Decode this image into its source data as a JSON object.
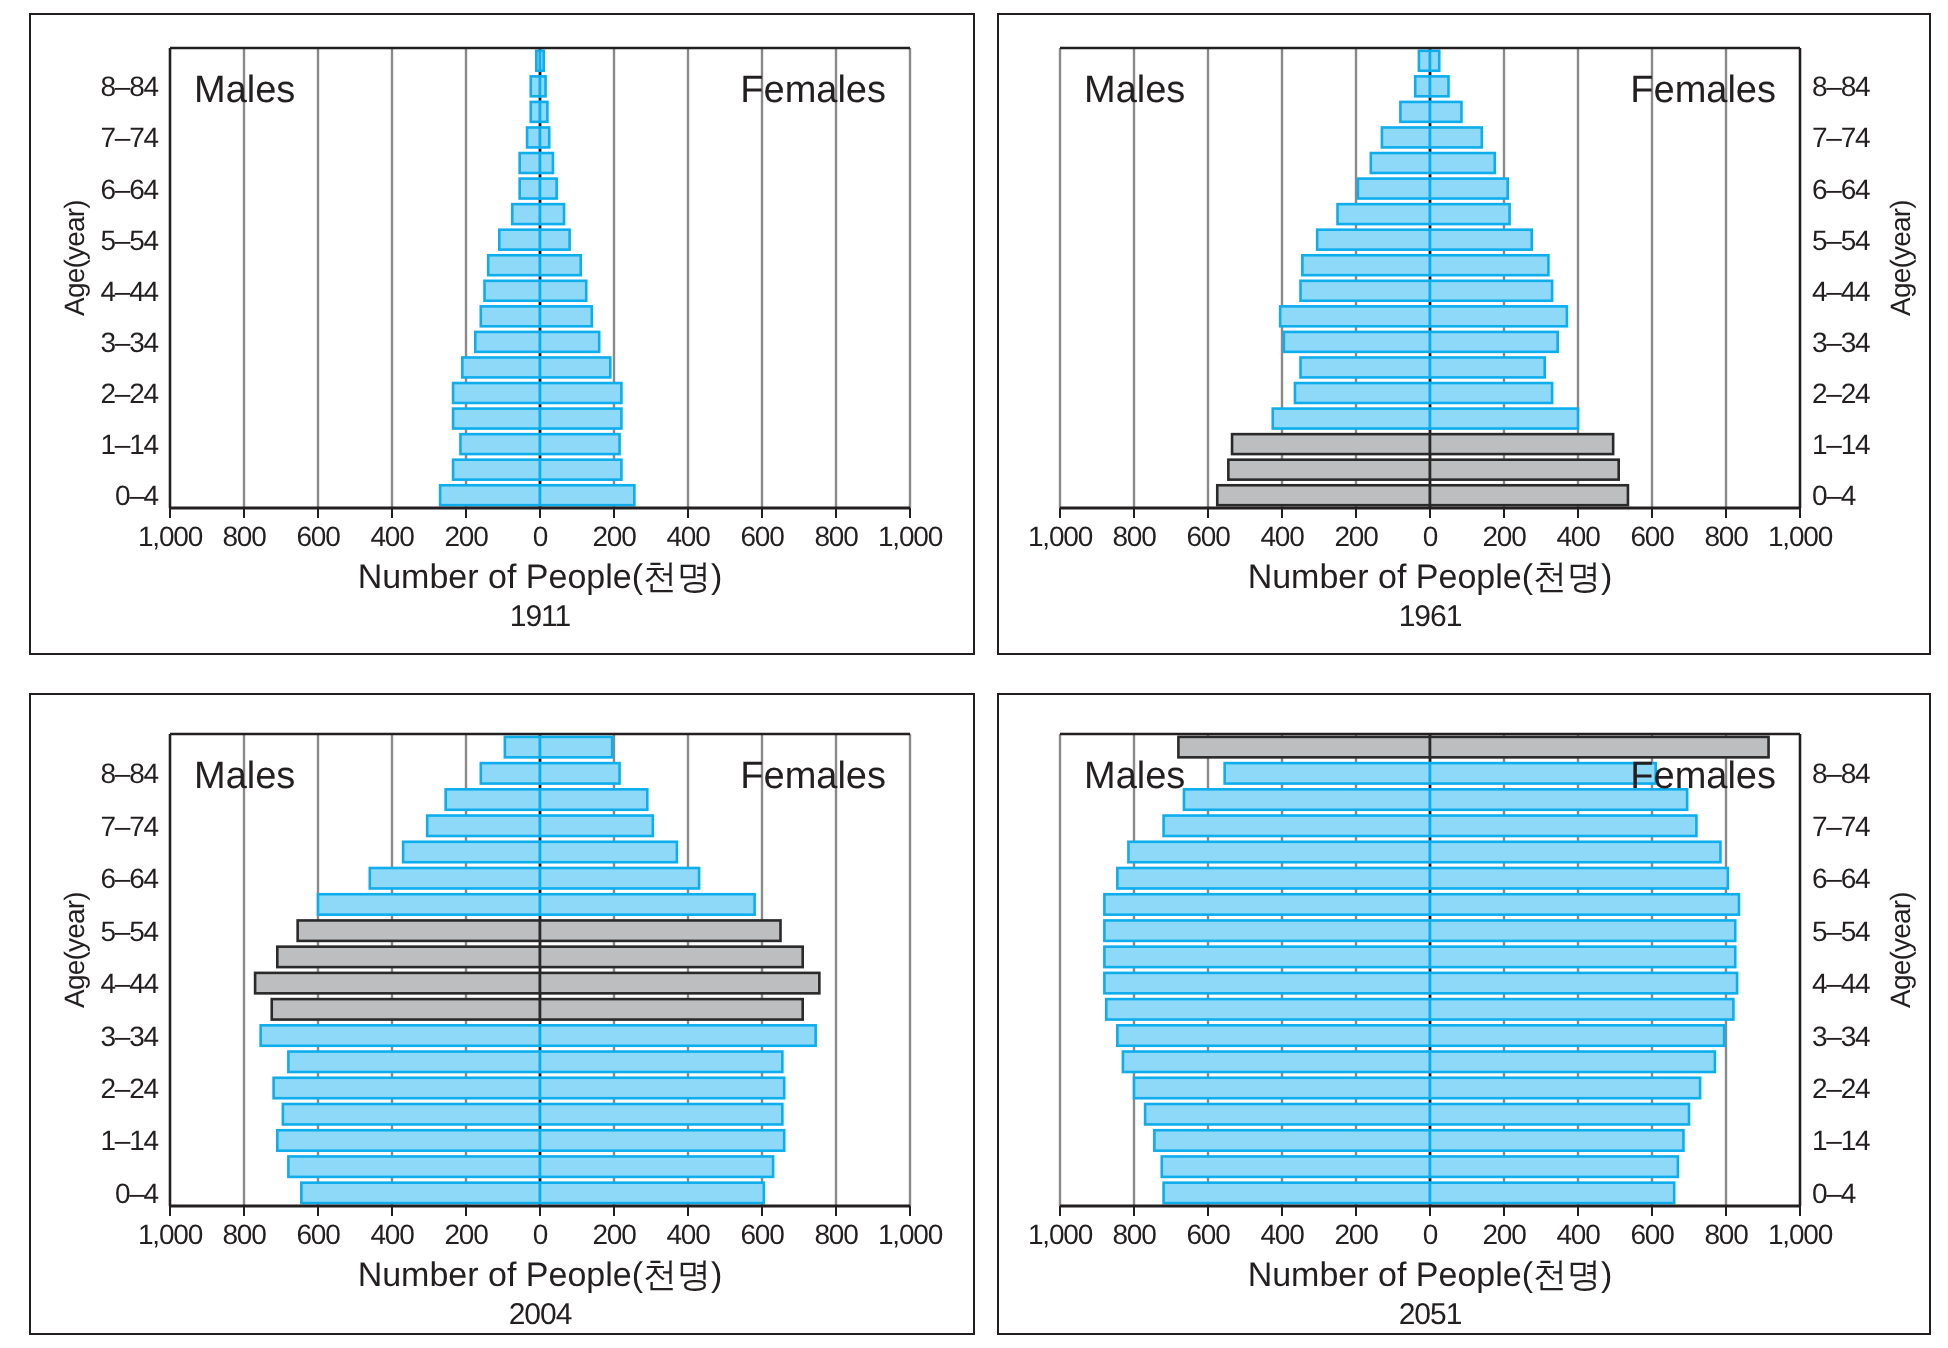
{
  "chart_data": [
    {
      "type": "bar",
      "orientation": "horizontal",
      "stacked": true,
      "annotations": [
        "Males",
        "Females"
      ],
      "title": "1911",
      "xlabel": "Number of People(천명)",
      "ylabel": "Age(year)",
      "categories": [
        null,
        "8–84",
        null,
        "7–74",
        null,
        "6–64",
        null,
        "5–54",
        null,
        "4–44",
        null,
        "3–34",
        null,
        "2–24",
        null,
        "1–14",
        null,
        "0–4"
      ],
      "series": [
        {
          "color": "#8ed8f8",
          "values": [
            -10,
            -25,
            -25,
            -35,
            -55,
            -55,
            -75,
            -110,
            -140,
            -150,
            -160,
            -175,
            -210,
            -235,
            -235,
            -215,
            -235,
            -270
          ]
        },
        {
          "color": "#8ed8f8",
          "values": [
            10,
            15,
            20,
            25,
            35,
            45,
            65,
            80,
            110,
            125,
            140,
            160,
            190,
            220,
            220,
            215,
            220,
            255
          ]
        }
      ],
      "xlim": [
        -1000,
        1000
      ],
      "xticks": [
        {
          "value": -1000,
          "label": "1,000"
        },
        {
          "value": -800,
          "label": "800"
        },
        {
          "value": -600,
          "label": "600"
        },
        {
          "value": -400,
          "label": "400"
        },
        {
          "value": -200,
          "label": "200"
        },
        0,
        200,
        400,
        600,
        800,
        {
          "value": 1000,
          "label": "1,000"
        }
      ],
      "grid": "x"
    },
    {
      "type": "bar",
      "orientation": "horizontal",
      "stacked": true,
      "annotations": [
        "Males",
        "Females"
      ],
      "title": "1961",
      "xlabel": "Number of People(천명)",
      "ylabel": "Age(year)",
      "categories": [
        null,
        "8–84",
        null,
        "7–74",
        null,
        "6–64",
        null,
        "5–54",
        null,
        "4–44",
        null,
        "3–34",
        null,
        "2–24",
        null,
        "1–14",
        null,
        "0–4"
      ],
      "series": [
        {
          "colors": [
            "#8ed8f8",
            "#8ed8f8",
            "#8ed8f8",
            "#8ed8f8",
            "#8ed8f8",
            "#8ed8f8",
            "#8ed8f8",
            "#8ed8f8",
            "#8ed8f8",
            "#8ed8f8",
            "#8ed8f8",
            "#8ed8f8",
            "#8ed8f8",
            "#8ed8f8",
            "#8ed8f8",
            "#bcbec0",
            "#bcbec0",
            "#bcbec0"
          ],
          "values": [
            -30,
            -40,
            -80,
            -130,
            -160,
            -195,
            -250,
            -305,
            -345,
            -350,
            -405,
            -395,
            -350,
            -365,
            -425,
            -535,
            -545,
            -575
          ]
        },
        {
          "colors": [
            "#8ed8f8",
            "#8ed8f8",
            "#8ed8f8",
            "#8ed8f8",
            "#8ed8f8",
            "#8ed8f8",
            "#8ed8f8",
            "#8ed8f8",
            "#8ed8f8",
            "#8ed8f8",
            "#8ed8f8",
            "#8ed8f8",
            "#8ed8f8",
            "#8ed8f8",
            "#8ed8f8",
            "#bcbec0",
            "#bcbec0",
            "#bcbec0"
          ],
          "values": [
            25,
            50,
            85,
            140,
            175,
            210,
            215,
            275,
            320,
            330,
            370,
            345,
            310,
            330,
            400,
            495,
            510,
            535
          ]
        }
      ],
      "xlim": [
        -1000,
        1000
      ],
      "xticks": [
        {
          "value": -1000,
          "label": "1,000"
        },
        {
          "value": -800,
          "label": "800"
        },
        {
          "value": -600,
          "label": "600"
        },
        {
          "value": -400,
          "label": "400"
        },
        {
          "value": -200,
          "label": "200"
        },
        0,
        200,
        400,
        600,
        800,
        {
          "value": 1000,
          "label": "1,000"
        }
      ],
      "grid": "x"
    },
    {
      "type": "bar",
      "orientation": "horizontal",
      "stacked": true,
      "annotations": [
        "Males",
        "Females"
      ],
      "title": "2004",
      "xlabel": "Number of People(천명)",
      "ylabel": "Age(year)",
      "categories": [
        null,
        "8–84",
        null,
        "7–74",
        null,
        "6–64",
        null,
        "5–54",
        null,
        "4–44",
        null,
        "3–34",
        null,
        "2–24",
        null,
        "1–14",
        null,
        "0–4"
      ],
      "series": [
        {
          "colors": [
            "#8ed8f8",
            "#8ed8f8",
            "#8ed8f8",
            "#8ed8f8",
            "#8ed8f8",
            "#8ed8f8",
            "#8ed8f8",
            "#bcbec0",
            "#bcbec0",
            "#bcbec0",
            "#bcbec0",
            "#8ed8f8",
            "#8ed8f8",
            "#8ed8f8",
            "#8ed8f8",
            "#8ed8f8",
            "#8ed8f8",
            "#8ed8f8"
          ],
          "values": [
            -95,
            -160,
            -255,
            -305,
            -370,
            -460,
            -600,
            -655,
            -710,
            -770,
            -725,
            -755,
            -680,
            -720,
            -695,
            -710,
            -680,
            -645
          ]
        },
        {
          "colors": [
            "#8ed8f8",
            "#8ed8f8",
            "#8ed8f8",
            "#8ed8f8",
            "#8ed8f8",
            "#8ed8f8",
            "#8ed8f8",
            "#bcbec0",
            "#bcbec0",
            "#bcbec0",
            "#bcbec0",
            "#8ed8f8",
            "#8ed8f8",
            "#8ed8f8",
            "#8ed8f8",
            "#8ed8f8",
            "#8ed8f8",
            "#8ed8f8"
          ],
          "values": [
            195,
            215,
            290,
            305,
            370,
            430,
            580,
            650,
            710,
            755,
            710,
            745,
            655,
            660,
            655,
            660,
            630,
            605
          ]
        }
      ],
      "xlim": [
        -1000,
        1000
      ],
      "xticks": [
        {
          "value": -1000,
          "label": "1,000"
        },
        {
          "value": -800,
          "label": "800"
        },
        {
          "value": -600,
          "label": "600"
        },
        {
          "value": -400,
          "label": "400"
        },
        {
          "value": -200,
          "label": "200"
        },
        0,
        200,
        400,
        600,
        800,
        {
          "value": 1000,
          "label": "1,000"
        }
      ],
      "grid": "x"
    },
    {
      "type": "bar",
      "orientation": "horizontal",
      "stacked": true,
      "annotations": [
        "Males",
        "Females"
      ],
      "title": "2051",
      "xlabel": "Number of People(천명)",
      "ylabel": "Age(year)",
      "categories": [
        null,
        "8–84",
        null,
        "7–74",
        null,
        "6–64",
        null,
        "5–54",
        null,
        "4–44",
        null,
        "3–34",
        null,
        "2–24",
        null,
        "1–14",
        null,
        "0–4"
      ],
      "series": [
        {
          "colors": [
            "#bcbec0",
            "#8ed8f8",
            "#8ed8f8",
            "#8ed8f8",
            "#8ed8f8",
            "#8ed8f8",
            "#8ed8f8",
            "#8ed8f8",
            "#8ed8f8",
            "#8ed8f8",
            "#8ed8f8",
            "#8ed8f8",
            "#8ed8f8",
            "#8ed8f8",
            "#8ed8f8",
            "#8ed8f8",
            "#8ed8f8",
            "#8ed8f8"
          ],
          "values": [
            -680,
            -555,
            -665,
            -720,
            -815,
            -845,
            -880,
            -880,
            -880,
            -880,
            -875,
            -845,
            -830,
            -800,
            -770,
            -745,
            -725,
            -720
          ]
        },
        {
          "colors": [
            "#bcbec0",
            "#8ed8f8",
            "#8ed8f8",
            "#8ed8f8",
            "#8ed8f8",
            "#8ed8f8",
            "#8ed8f8",
            "#8ed8f8",
            "#8ed8f8",
            "#8ed8f8",
            "#8ed8f8",
            "#8ed8f8",
            "#8ed8f8",
            "#8ed8f8",
            "#8ed8f8",
            "#8ed8f8",
            "#8ed8f8",
            "#8ed8f8"
          ],
          "values": [
            915,
            610,
            695,
            720,
            785,
            805,
            835,
            825,
            825,
            830,
            820,
            795,
            770,
            730,
            700,
            685,
            670,
            660
          ]
        }
      ],
      "xlim": [
        -1000,
        1000
      ],
      "xticks": [
        {
          "value": -1000,
          "label": "1,000"
        },
        {
          "value": -800,
          "label": "800"
        },
        {
          "value": -600,
          "label": "600"
        },
        {
          "value": -400,
          "label": "400"
        },
        {
          "value": -200,
          "label": "200"
        },
        0,
        200,
        400,
        600,
        800,
        {
          "value": 1000,
          "label": "1,000"
        }
      ],
      "grid": "x"
    }
  ]
}
